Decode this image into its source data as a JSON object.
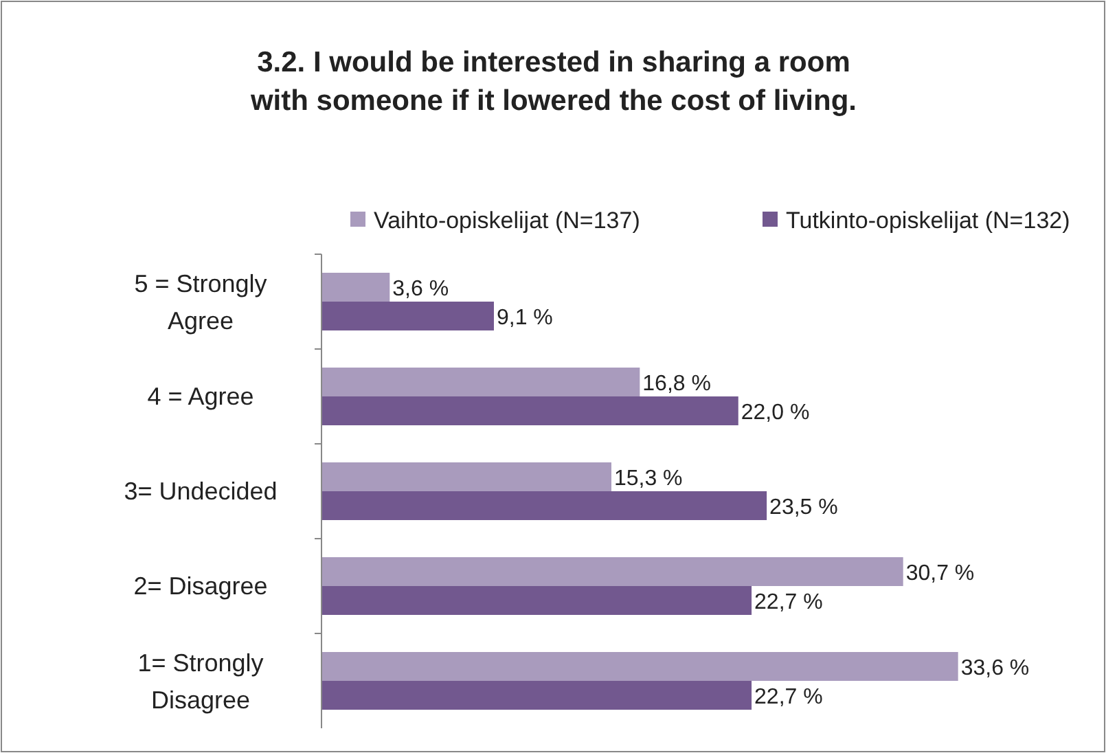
{
  "chart_data": {
    "type": "bar",
    "orientation": "horizontal",
    "title": "3.2. I would be interested in sharing a room with someone if it lowered the cost of living.",
    "categories": [
      "5 = Strongly Agree",
      "4 = Agree",
      "3= Undecided",
      "2= Disagree",
      "1= Strongly Disagree"
    ],
    "series": [
      {
        "name": "Vaihto-opiskelijat (N=137)",
        "color": "#a99bbd",
        "values": [
          3.6,
          16.8,
          15.3,
          30.7,
          33.6
        ],
        "value_labels": [
          "3,6 %",
          "16,8 %",
          "15,3 %",
          "30,7 %",
          "33,6 %"
        ]
      },
      {
        "name": "Tutkinto-opiskelijat (N=132)",
        "color": "#72588f",
        "values": [
          9.1,
          22.0,
          23.5,
          22.7,
          22.7
        ],
        "value_labels": [
          "9,1 %",
          "22,0 %",
          "23,5 %",
          "22,7 %",
          "22,7 %"
        ]
      }
    ],
    "legend": "top",
    "tick_labels": "y",
    "grid": false
  }
}
